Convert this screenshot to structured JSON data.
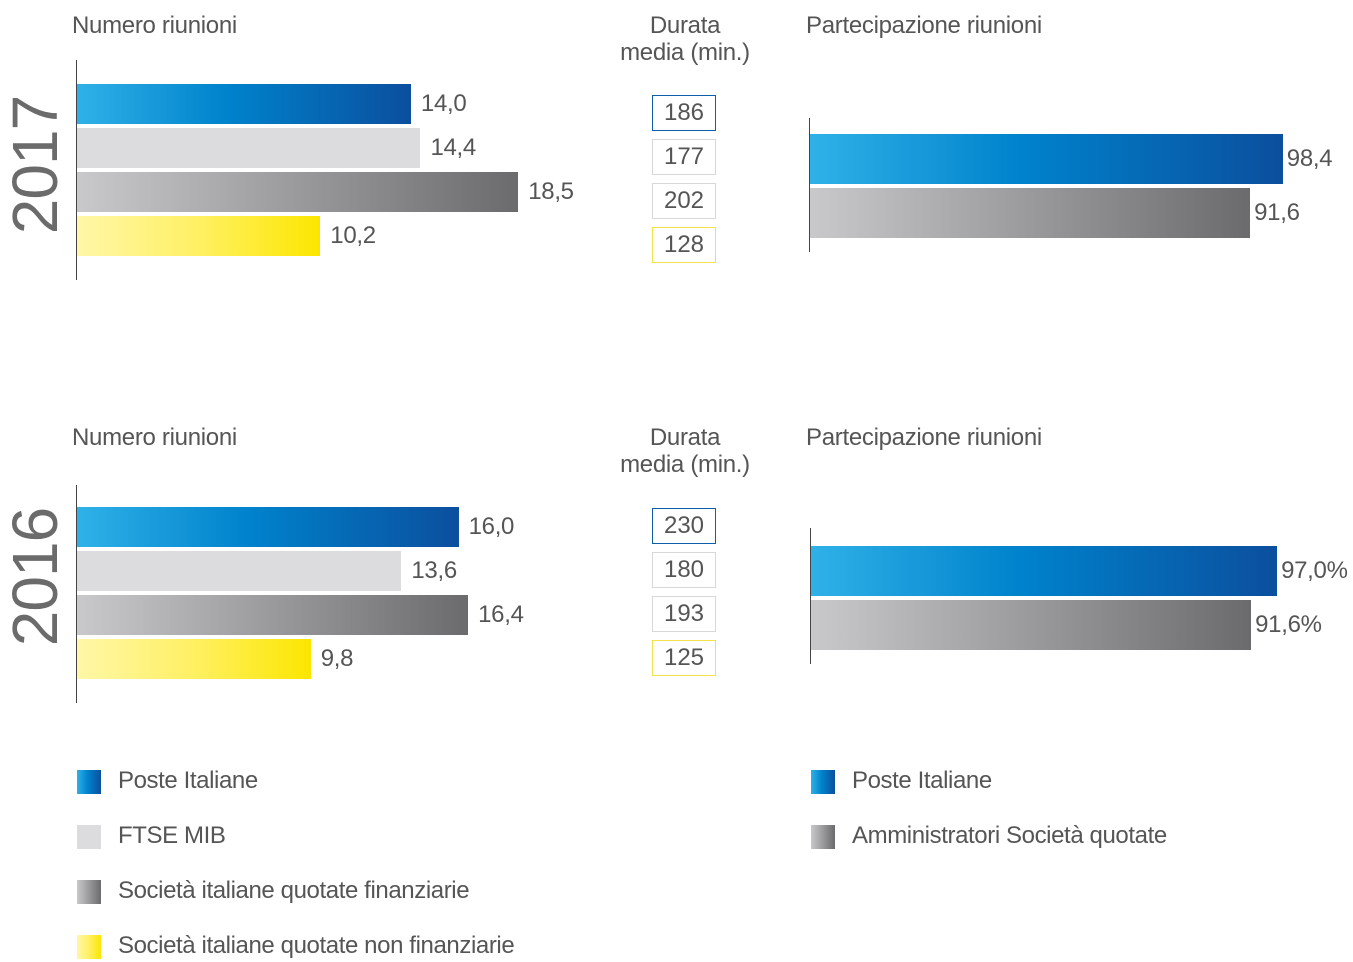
{
  "chart_data": [
    {
      "type": "bar",
      "orientation": "horizontal",
      "year": "2017",
      "title": "Numero riunioni",
      "series": [
        {
          "name": "Poste Italiane",
          "value": 14.0,
          "label": "14,0",
          "style": "blue"
        },
        {
          "name": "FTSE MIB",
          "value": 14.4,
          "label": "14,4",
          "style": "lgray"
        },
        {
          "name": "Società italiane quotate finanziarie",
          "value": 18.5,
          "label": "18,5",
          "style": "dgray"
        },
        {
          "name": "Società italiane quotate non finanziarie",
          "value": 10.2,
          "label": "10,2",
          "style": "yellow"
        }
      ],
      "xlim": [
        0,
        25
      ]
    },
    {
      "type": "table",
      "year": "2017",
      "title": "Durata\nmedia (min.)",
      "values": [
        {
          "series": "Poste Italiane",
          "value": "186",
          "border": "#0b5fa8"
        },
        {
          "series": "FTSE MIB",
          "value": "177",
          "border": "#d8d8d8"
        },
        {
          "series": "Società italiane quotate finanziarie",
          "value": "202",
          "border": "#d8d8d8"
        },
        {
          "series": "Società italiane quotate non finanziarie",
          "value": "128",
          "border": "#f2e24a"
        }
      ]
    },
    {
      "type": "bar",
      "orientation": "horizontal",
      "year": "2017",
      "title": "Partecipazione riunioni",
      "series": [
        {
          "name": "Poste Italiane",
          "value": 98.4,
          "label": "98,4",
          "style": "blue"
        },
        {
          "name": "Amministratori Società quotate",
          "value": 91.6,
          "label": "91,6",
          "style": "dgray"
        }
      ],
      "xlim": [
        0,
        100
      ]
    },
    {
      "type": "bar",
      "orientation": "horizontal",
      "year": "2016",
      "title": "Numero riunioni",
      "series": [
        {
          "name": "Poste Italiane",
          "value": 16.0,
          "label": "16,0",
          "style": "blue"
        },
        {
          "name": "FTSE MIB",
          "value": 13.6,
          "label": "13,6",
          "style": "lgray"
        },
        {
          "name": "Società italiane quotate finanziarie",
          "value": 16.4,
          "label": "16,4",
          "style": "dgray"
        },
        {
          "name": "Società italiane quotate non finanziarie",
          "value": 9.8,
          "label": "9,8",
          "style": "yellow"
        }
      ],
      "xlim": [
        0,
        25
      ]
    },
    {
      "type": "table",
      "year": "2016",
      "title": "Durata\nmedia (min.)",
      "values": [
        {
          "series": "Poste Italiane",
          "value": "230",
          "border": "#0b5fa8"
        },
        {
          "series": "FTSE MIB",
          "value": "180",
          "border": "#d8d8d8"
        },
        {
          "series": "Società italiane quotate finanziarie",
          "value": "193",
          "border": "#d8d8d8"
        },
        {
          "series": "Società italiane quotate non finanziarie",
          "value": "125",
          "border": "#f2e24a"
        }
      ]
    },
    {
      "type": "bar",
      "orientation": "horizontal",
      "year": "2016",
      "title": "Partecipazione riunioni",
      "series": [
        {
          "name": "Poste Italiane",
          "value": 97.0,
          "label": "97,0%",
          "style": "blue"
        },
        {
          "name": "Amministratori Società quotate",
          "value": 91.6,
          "label": "91,6%",
          "style": "dgray"
        }
      ],
      "xlim": [
        0,
        100
      ]
    }
  ],
  "legend_left": [
    {
      "label": "Poste Italiane",
      "style": "blue"
    },
    {
      "label": "FTSE MIB",
      "style": "lgray"
    },
    {
      "label": "Società italiane quotate finanziarie",
      "style": "dgray"
    },
    {
      "label": "Società italiane quotate non finanziarie",
      "style": "yellow"
    }
  ],
  "legend_right": [
    {
      "label": "Poste Italiane",
      "style": "blue"
    },
    {
      "label": "Amministratori Società quotate",
      "style": "dgray"
    }
  ],
  "colors": {
    "blue_start": "#2fb1e8",
    "blue_end": "#0b4f9e",
    "light_gray": "#dcdcde",
    "dark_gray_start": "#c9c9cb",
    "dark_gray_end": "#6b6b6e",
    "yellow_start": "#fff7a8",
    "yellow_end": "#fce600",
    "text": "#555555"
  }
}
